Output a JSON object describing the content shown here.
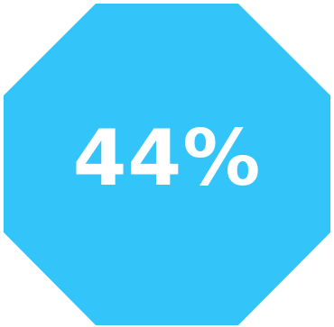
{
  "badge": {
    "value_text": "44%",
    "fill_color": "#33c4fa",
    "text_color": "#ffffff",
    "shape": "octagon"
  }
}
